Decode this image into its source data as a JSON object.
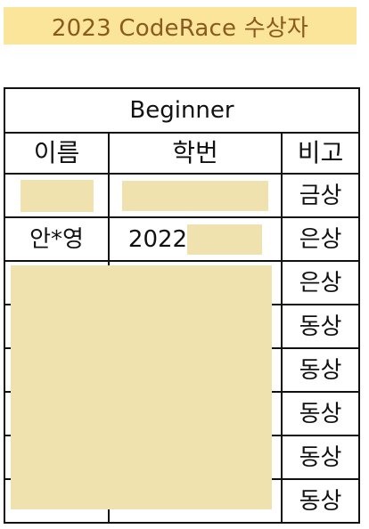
{
  "title": "2023 CodeRace 수상자",
  "table": {
    "section": "Beginner",
    "headers": [
      "이름",
      "학번",
      "비고"
    ],
    "rows": [
      {
        "name": "",
        "student_id_prefix": "",
        "award": "금상"
      },
      {
        "name": "안*영",
        "student_id_prefix": "2022",
        "award": "은상"
      },
      {
        "name": "",
        "student_id_prefix": "",
        "award": "은상"
      },
      {
        "name": "",
        "student_id_prefix": "",
        "award": "동상"
      },
      {
        "name": "",
        "student_id_prefix": "",
        "award": "동상"
      },
      {
        "name": "",
        "student_id_prefix": "",
        "award": "동상"
      },
      {
        "name": "",
        "student_id_prefix": "",
        "award": "동상"
      },
      {
        "name": "",
        "student_id_prefix": "",
        "award": "동상"
      }
    ]
  },
  "colors": {
    "banner_bg": "#fbe59a",
    "banner_text": "#8a5a1f",
    "redaction": "#efe2ae",
    "border": "#111111"
  }
}
